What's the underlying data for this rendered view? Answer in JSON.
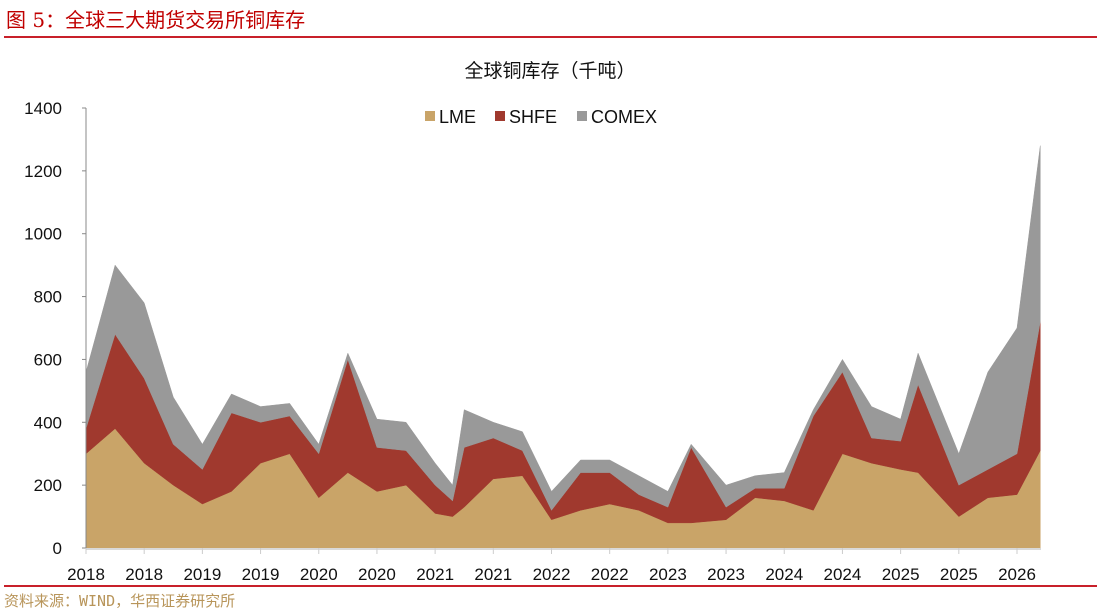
{
  "figure_title": "图 5：全球三大期货交易所铜库存",
  "source": "资料来源：WIND，华西证券研究所",
  "chart_data": {
    "type": "area",
    "stacked": true,
    "title": "全球铜库存（千吨）",
    "xlabel": "",
    "ylabel": "",
    "ylim": [
      0,
      1400
    ],
    "yticks": [
      0,
      200,
      400,
      600,
      800,
      1000,
      1200,
      1400
    ],
    "xtick_labels": [
      "2018",
      "2018",
      "2019",
      "2019",
      "2020",
      "2020",
      "2021",
      "2021",
      "2022",
      "2022",
      "2023",
      "2023",
      "2024",
      "2024",
      "2025",
      "2025",
      "2026"
    ],
    "legend_position": "top-center",
    "x": [
      2018.0,
      2018.25,
      2018.5,
      2018.75,
      2019.0,
      2019.25,
      2019.5,
      2019.75,
      2020.0,
      2020.25,
      2020.5,
      2020.75,
      2021.0,
      2021.15,
      2021.25,
      2021.5,
      2021.75,
      2022.0,
      2022.25,
      2022.5,
      2022.75,
      2023.0,
      2023.2,
      2023.5,
      2023.75,
      2024.0,
      2024.25,
      2024.5,
      2024.75,
      2025.0,
      2025.15,
      2025.5,
      2025.75,
      2026.0,
      2026.2
    ],
    "series": [
      {
        "name": "LME",
        "color": "#c9a468",
        "values": [
          300,
          380,
          270,
          200,
          140,
          180,
          270,
          300,
          160,
          240,
          180,
          200,
          110,
          100,
          130,
          220,
          230,
          90,
          120,
          140,
          120,
          80,
          80,
          90,
          160,
          150,
          120,
          300,
          270,
          250,
          240,
          100,
          160,
          170,
          310
        ]
      },
      {
        "name": "SHFE",
        "color": "#a0392e",
        "values": [
          80,
          300,
          270,
          130,
          110,
          250,
          130,
          120,
          140,
          360,
          140,
          110,
          90,
          50,
          190,
          130,
          80,
          30,
          120,
          100,
          50,
          50,
          240,
          40,
          30,
          40,
          300,
          260,
          80,
          90,
          280,
          100,
          90,
          130,
          410
        ]
      },
      {
        "name": "COMEX",
        "color": "#999999",
        "values": [
          180,
          220,
          240,
          150,
          80,
          60,
          50,
          40,
          30,
          20,
          90,
          90,
          70,
          50,
          120,
          50,
          60,
          60,
          40,
          40,
          60,
          50,
          10,
          70,
          40,
          50,
          20,
          40,
          100,
          70,
          100,
          100,
          310,
          400,
          560
        ]
      }
    ]
  }
}
